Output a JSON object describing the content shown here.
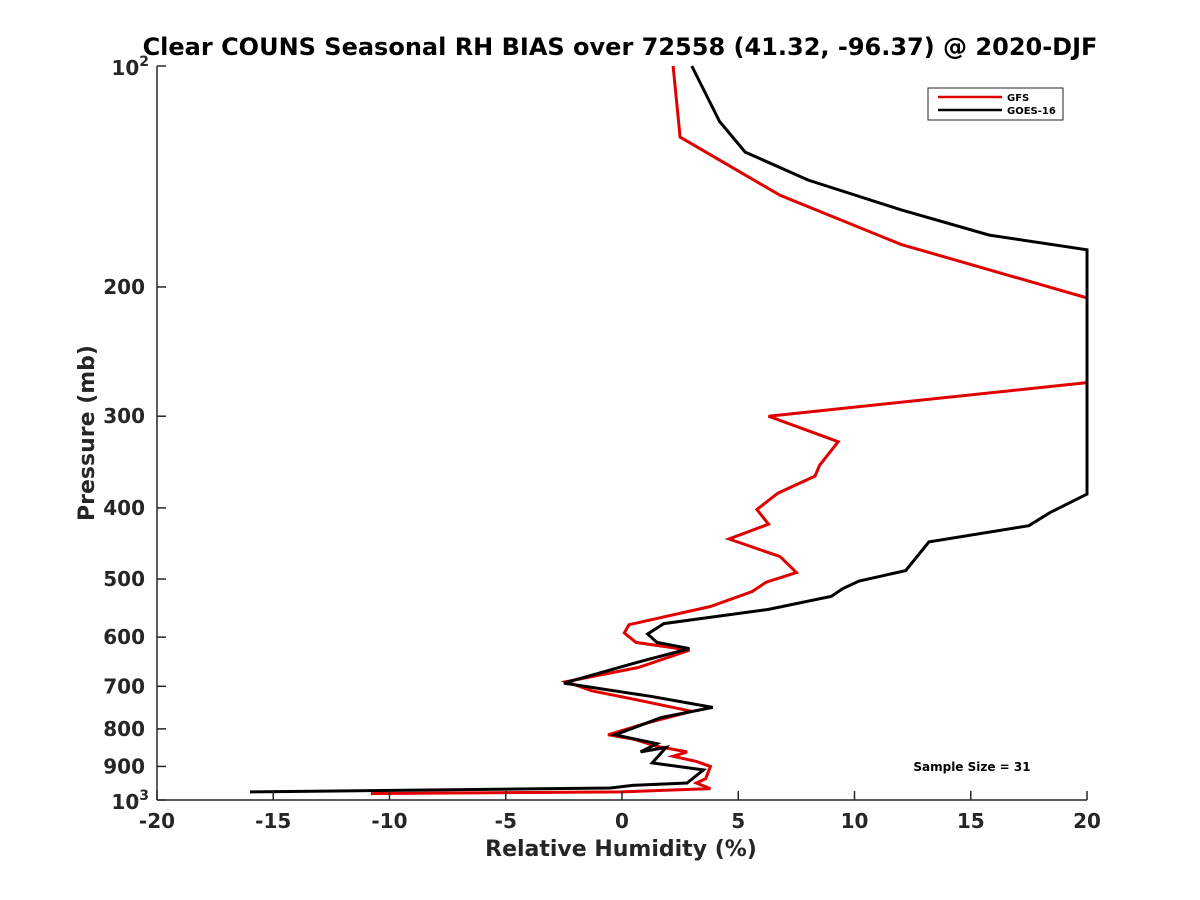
{
  "chart_data": {
    "type": "line",
    "title": "Clear COUNS Seasonal RH BIAS over 72558 (41.32, -96.37) @ 2020-DJF",
    "xlabel": "Relative Humidity (%)",
    "ylabel": "Pressure (mb)",
    "xlim": [
      -20,
      20
    ],
    "ylim": [
      100,
      1000
    ],
    "y_scale": "log",
    "y_reversed": true,
    "grid": false,
    "legend_position": "top-right",
    "x_ticks": [
      "-20",
      "-15",
      "-10",
      "-5",
      "0",
      "5",
      "10",
      "15",
      "20"
    ],
    "y_ticks": [
      {
        "value": 100,
        "base": "10",
        "exp": "2"
      },
      {
        "value": 200,
        "label": "200"
      },
      {
        "value": 300,
        "label": "300"
      },
      {
        "value": 400,
        "label": "400"
      },
      {
        "value": 500,
        "label": "500"
      },
      {
        "value": 600,
        "label": "600"
      },
      {
        "value": 700,
        "label": "700"
      },
      {
        "value": 800,
        "label": "800"
      },
      {
        "value": 900,
        "label": "900"
      },
      {
        "value": 1000,
        "base": "10",
        "exp": "3"
      }
    ],
    "annotation": "Sample Size = 31",
    "series": [
      {
        "name": "GFS",
        "color": "#e00000",
        "points": [
          [
            2.2,
            100
          ],
          [
            2.5,
            125
          ],
          [
            6.8,
            150
          ],
          [
            12,
            175
          ],
          [
            20,
            207
          ],
          [
            20,
            270
          ],
          [
            6.3,
            300
          ],
          [
            9.3,
            325
          ],
          [
            8.5,
            350
          ],
          [
            8.3,
            362
          ],
          [
            6.7,
            382
          ],
          [
            5.8,
            402
          ],
          [
            6.3,
            421
          ],
          [
            4.6,
            441
          ],
          [
            6.8,
            466
          ],
          [
            7.5,
            490
          ],
          [
            6.2,
            505
          ],
          [
            5.6,
            520
          ],
          [
            3.8,
            545
          ],
          [
            0.3,
            577
          ],
          [
            0.1,
            592
          ],
          [
            0.6,
            610
          ],
          [
            2.9,
            625
          ],
          [
            0.7,
            660
          ],
          [
            -2.4,
            690
          ],
          [
            -1.3,
            710
          ],
          [
            0.6,
            730
          ],
          [
            3.0,
            757
          ],
          [
            1.1,
            785
          ],
          [
            -0.6,
            815
          ],
          [
            0.5,
            826
          ],
          [
            1.5,
            845
          ],
          [
            2.8,
            860
          ],
          [
            2.2,
            872
          ],
          [
            3.2,
            886
          ],
          [
            3.8,
            900
          ],
          [
            3.6,
            935
          ],
          [
            3.2,
            948
          ],
          [
            3.8,
            965
          ],
          [
            0,
            975
          ],
          [
            -10.8,
            980
          ]
        ]
      },
      {
        "name": "GOES-16",
        "color": "#000000",
        "points": [
          [
            3.0,
            100
          ],
          [
            4.2,
            119
          ],
          [
            5.3,
            131
          ],
          [
            8,
            143
          ],
          [
            12,
            157
          ],
          [
            15.8,
            170
          ],
          [
            20,
            178
          ],
          [
            20,
            383
          ],
          [
            18.4,
            406
          ],
          [
            17.5,
            423
          ],
          [
            13.2,
            445
          ],
          [
            12.2,
            487
          ],
          [
            10.2,
            503
          ],
          [
            9.5,
            515
          ],
          [
            9,
            528
          ],
          [
            6.3,
            550
          ],
          [
            1.8,
            575
          ],
          [
            1.1,
            594
          ],
          [
            1.5,
            610
          ],
          [
            2.9,
            622
          ],
          [
            0.6,
            650
          ],
          [
            -2.5,
            693
          ],
          [
            1.2,
            722
          ],
          [
            3.9,
            748
          ],
          [
            1.7,
            772
          ],
          [
            -0.3,
            815
          ],
          [
            1.5,
            838
          ],
          [
            0.8,
            860
          ],
          [
            1.9,
            848
          ],
          [
            1.3,
            890
          ],
          [
            3.5,
            910
          ],
          [
            2.8,
            948
          ],
          [
            0.5,
            955
          ],
          [
            -0.5,
            963
          ],
          [
            -16,
            975
          ]
        ]
      }
    ]
  }
}
